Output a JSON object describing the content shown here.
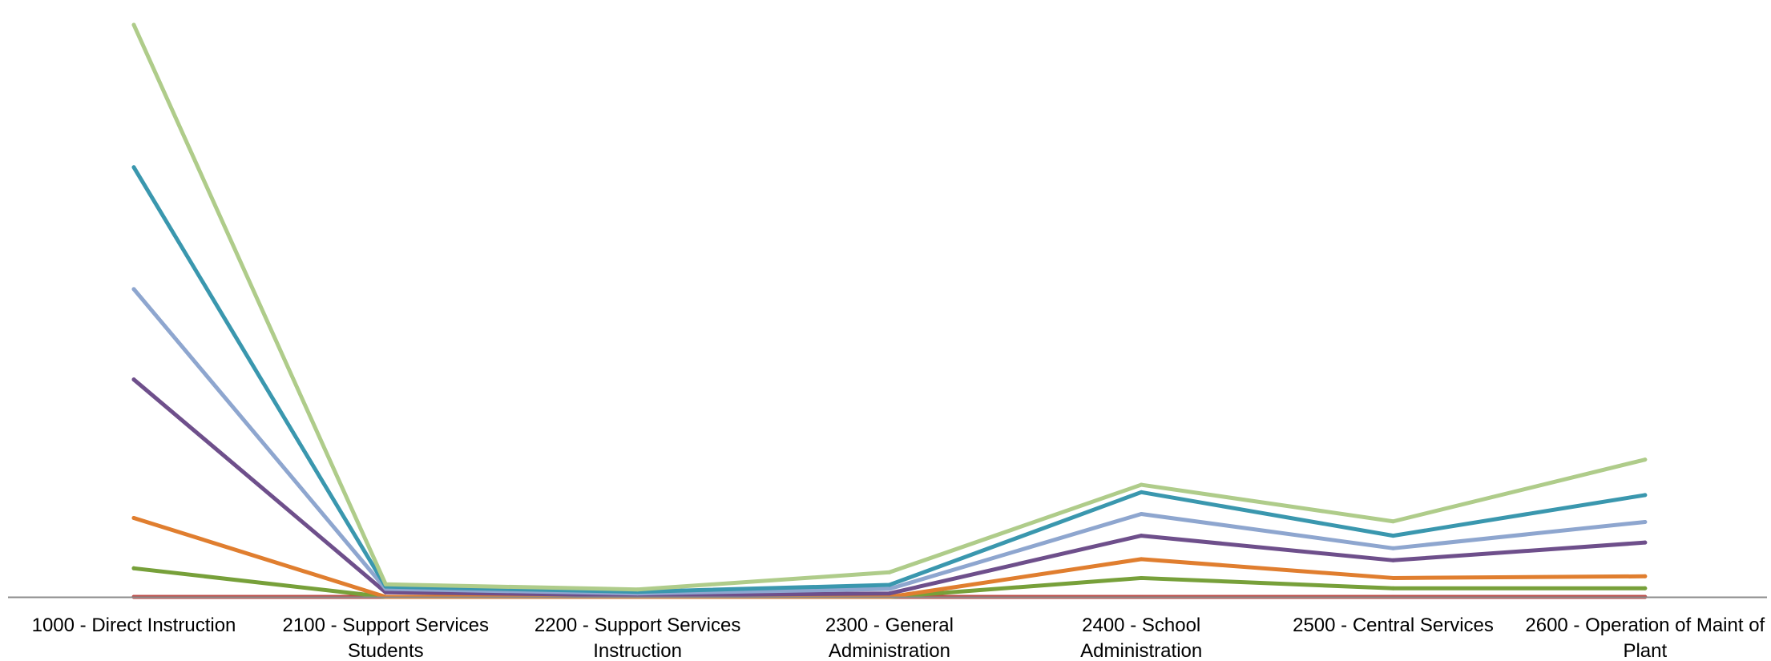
{
  "chart_data": {
    "type": "line",
    "title": "",
    "xlabel": "",
    "ylabel": "",
    "categories": [
      [
        "1000 - Direct Instruction"
      ],
      [
        "2100 - Support Services",
        "Students"
      ],
      [
        "2200 - Support Services",
        "Instruction"
      ],
      [
        "2300 - General",
        "Administration"
      ],
      [
        "2400 - School",
        "Administration"
      ],
      [
        "2500 - Central Services"
      ],
      [
        "2600 - Operation of Maint of",
        "Plant"
      ]
    ],
    "ylim": [
      0,
      100
    ],
    "grid": false,
    "legend": "none",
    "series": [
      {
        "color": "#be4b48",
        "values": [
          0,
          0,
          0,
          0,
          0,
          0,
          0
        ]
      },
      {
        "color": "#77a03a",
        "values": [
          5,
          0,
          0,
          0,
          3.3,
          1.5,
          1.5
        ]
      },
      {
        "color": "#e07e2f",
        "values": [
          13.8,
          0,
          0,
          0,
          6.6,
          3.3,
          3.6
        ]
      },
      {
        "color": "#6e4f8b",
        "values": [
          38,
          0.8,
          0.3,
          0.6,
          10.7,
          6.4,
          9.5
        ]
      },
      {
        "color": "#8ea6cf",
        "values": [
          53.8,
          1.4,
          0.6,
          1.4,
          14.5,
          8.5,
          13.1
        ]
      },
      {
        "color": "#3a97ae",
        "values": [
          75.1,
          1.8,
          0.9,
          2.1,
          18.3,
          10.7,
          17.8
        ]
      },
      {
        "color": "#afcc8a",
        "values": [
          100,
          2.2,
          1.3,
          4.3,
          19.6,
          13.2,
          24
        ]
      }
    ]
  }
}
